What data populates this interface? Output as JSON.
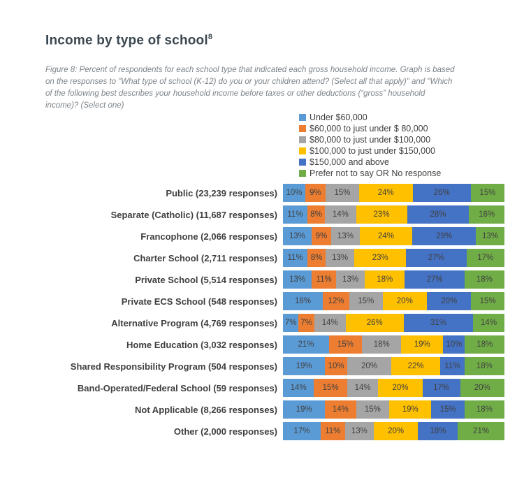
{
  "title": {
    "text": "Income by type of school",
    "superscript": "8"
  },
  "caption": "Figure 8: Percent of respondents for each school type that indicated each gross household income. Graph is based on the responses to \"What type of school (K-12) do you or your children attend? (Select all that apply)\" and \"Which of the following best describes your household income before taxes or other deductions (“gross” household income)? (Select one)",
  "legend": [
    {
      "label": "Under $60,000",
      "color": "#5B9BD5"
    },
    {
      "label": "$60,000 to just under $ 80,000",
      "color": "#ED7D31"
    },
    {
      "label": "$80,000 to just under $100,000",
      "color": "#A5A5A5"
    },
    {
      "label": "$100,000 to just under $150,000",
      "color": "#FFC000"
    },
    {
      "label": "$150,000 and above",
      "color": "#4472C4"
    },
    {
      "label": "Prefer not to say OR No response",
      "color": "#70AD47"
    }
  ],
  "chart_data": {
    "type": "bar",
    "orientation": "horizontal",
    "stacked": true,
    "percent_stacked": true,
    "unit": "percent",
    "title": "Income by type of school",
    "xlabel": "",
    "ylabel": "",
    "xlim": [
      0,
      100
    ],
    "grid": false,
    "legend_position": "top-right",
    "data_labels": true,
    "categories": [
      "Public (23,239 responses)",
      "Separate (Catholic) (11,687 responses)",
      "Francophone (2,066 responses)",
      "Charter School (2,711 responses)",
      "Private School (5,514 responses)",
      "Private ECS School (548 responses)",
      "Alternative Program (4,769 responses)",
      "Home Education (3,032 responses)",
      "Shared Responsibility Program (504 responses)",
      "Band-Operated/Federal School (59 responses)",
      "Not Applicable (8,266 responses)",
      "Other (2,000 responses)"
    ],
    "series": [
      {
        "name": "Under $60,000",
        "values": [
          10,
          11,
          13,
          11,
          13,
          18,
          7,
          21,
          19,
          14,
          19,
          17
        ]
      },
      {
        "name": "$60,000 to just under $ 80,000",
        "values": [
          9,
          8,
          9,
          8,
          11,
          12,
          7,
          15,
          10,
          15,
          14,
          11
        ]
      },
      {
        "name": "$80,000 to just under $100,000",
        "values": [
          15,
          14,
          13,
          13,
          13,
          15,
          14,
          18,
          20,
          14,
          15,
          13
        ]
      },
      {
        "name": "$100,000 to just under $150,000",
        "values": [
          24,
          23,
          24,
          23,
          18,
          20,
          26,
          19,
          22,
          20,
          19,
          20
        ]
      },
      {
        "name": "$150,000 and above",
        "values": [
          26,
          28,
          29,
          27,
          27,
          20,
          31,
          10,
          11,
          17,
          15,
          18
        ]
      },
      {
        "name": "Prefer not to say OR No response",
        "values": [
          15,
          16,
          13,
          17,
          18,
          15,
          14,
          18,
          18,
          20,
          18,
          21
        ]
      }
    ],
    "value_suffix": "%"
  }
}
